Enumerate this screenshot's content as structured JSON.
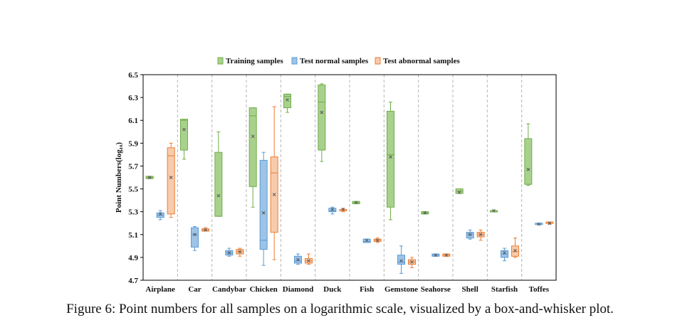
{
  "chart_data": {
    "type": "box",
    "ylabel": "Point Numbers(log₁₀)",
    "ylim": [
      4.7,
      6.5
    ],
    "yticks": [
      "4.7",
      "4.9",
      "5.1",
      "5.3",
      "5.5",
      "5.7",
      "5.9",
      "6.1",
      "6.3",
      "6.5"
    ],
    "categories": [
      "Airplane",
      "Car",
      "Candybar",
      "Chicken",
      "Diamond",
      "Duck",
      "Fish",
      "Gemstone",
      "Seahorse",
      "Shell",
      "Starfish",
      "Toffes"
    ],
    "legend_position": "top-center",
    "series": [
      {
        "name": "Training samples",
        "fill": "#a9d18e",
        "stroke": "#70ad47",
        "boxes": [
          {
            "min": 5.59,
            "q1": 5.59,
            "median": 5.6,
            "mean": 5.6,
            "q3": 5.61,
            "max": 5.61
          },
          {
            "min": 5.76,
            "q1": 5.84,
            "median": 6.1,
            "mean": 6.02,
            "q3": 6.11,
            "max": 6.11
          },
          {
            "min": 5.26,
            "q1": 5.26,
            "median": 5.26,
            "mean": 5.44,
            "q3": 5.82,
            "max": 6.0
          },
          {
            "min": 5.34,
            "q1": 5.52,
            "median": 6.14,
            "mean": 5.96,
            "q3": 6.21,
            "max": 6.21
          },
          {
            "min": 6.17,
            "q1": 6.21,
            "median": 6.31,
            "mean": 6.28,
            "q3": 6.33,
            "max": 6.33
          },
          {
            "min": 5.74,
            "q1": 5.84,
            "median": 6.26,
            "mean": 6.17,
            "q3": 6.41,
            "max": 6.42
          },
          {
            "min": 5.37,
            "q1": 5.37,
            "median": 5.38,
            "mean": 5.38,
            "q3": 5.39,
            "max": 5.39
          },
          {
            "min": 5.23,
            "q1": 5.34,
            "median": 5.8,
            "mean": 5.78,
            "q3": 6.18,
            "max": 6.26
          },
          {
            "min": 5.28,
            "q1": 5.28,
            "median": 5.29,
            "mean": 5.29,
            "q3": 5.3,
            "max": 5.3
          },
          {
            "min": 5.46,
            "q1": 5.46,
            "median": 5.48,
            "mean": 5.47,
            "q3": 5.5,
            "max": 5.5
          },
          {
            "min": 5.3,
            "q1": 5.3,
            "median": 5.31,
            "mean": 5.31,
            "q3": 5.31,
            "max": 5.31
          },
          {
            "min": 5.53,
            "q1": 5.54,
            "median": 5.54,
            "mean": 5.67,
            "q3": 5.94,
            "max": 6.07
          }
        ]
      },
      {
        "name": "Test normal samples",
        "fill": "#9dc3e6",
        "stroke": "#5b9bd5",
        "boxes": [
          {
            "min": 5.23,
            "q1": 5.25,
            "median": 5.27,
            "mean": 5.28,
            "q3": 5.29,
            "max": 5.31
          },
          {
            "min": 4.96,
            "q1": 4.99,
            "median": 5.1,
            "mean": 5.1,
            "q3": 5.16,
            "max": 5.17
          },
          {
            "min": 4.91,
            "q1": 4.92,
            "median": 4.94,
            "mean": 4.94,
            "q3": 4.96,
            "max": 4.98
          },
          {
            "min": 4.83,
            "q1": 4.97,
            "median": 5.05,
            "mean": 5.29,
            "q3": 5.75,
            "max": 5.82
          },
          {
            "min": 4.84,
            "q1": 4.85,
            "median": 4.87,
            "mean": 4.88,
            "q3": 4.91,
            "max": 4.93
          },
          {
            "min": 5.28,
            "q1": 5.3,
            "median": 5.31,
            "mean": 5.32,
            "q3": 5.33,
            "max": 5.34
          },
          {
            "min": 5.03,
            "q1": 5.03,
            "median": 5.04,
            "mean": 5.05,
            "q3": 5.06,
            "max": 5.06
          },
          {
            "min": 4.76,
            "q1": 4.84,
            "median": 4.86,
            "mean": 4.87,
            "q3": 4.92,
            "max": 5.0
          },
          {
            "min": 4.91,
            "q1": 4.91,
            "median": 4.92,
            "mean": 4.92,
            "q3": 4.93,
            "max": 4.93
          },
          {
            "min": 5.06,
            "q1": 5.07,
            "median": 5.1,
            "mean": 5.1,
            "q3": 5.12,
            "max": 5.14
          },
          {
            "min": 4.87,
            "q1": 4.9,
            "median": 4.93,
            "mean": 4.94,
            "q3": 4.96,
            "max": 4.98
          },
          {
            "min": 5.19,
            "q1": 5.19,
            "median": 5.19,
            "mean": 5.19,
            "q3": 5.2,
            "max": 5.2
          }
        ]
      },
      {
        "name": "Test abnormal samples",
        "fill": "#f8cbad",
        "stroke": "#ed7d31",
        "boxes": [
          {
            "min": 5.25,
            "q1": 5.28,
            "median": 5.79,
            "mean": 5.6,
            "q3": 5.86,
            "max": 5.9
          },
          {
            "min": 5.13,
            "q1": 5.13,
            "median": 5.14,
            "mean": 5.14,
            "q3": 5.15,
            "max": 5.16
          },
          {
            "min": 4.91,
            "q1": 4.93,
            "median": 4.95,
            "mean": 4.95,
            "q3": 4.97,
            "max": 4.98
          },
          {
            "min": 4.88,
            "q1": 5.12,
            "median": 5.64,
            "mean": 5.45,
            "q3": 5.78,
            "max": 6.22
          },
          {
            "min": 4.84,
            "q1": 4.85,
            "median": 4.87,
            "mean": 4.87,
            "q3": 4.89,
            "max": 4.93
          },
          {
            "min": 5.3,
            "q1": 5.31,
            "median": 5.32,
            "mean": 5.32,
            "q3": 5.32,
            "max": 5.33
          },
          {
            "min": 5.03,
            "q1": 5.04,
            "median": 5.05,
            "mean": 5.05,
            "q3": 5.06,
            "max": 5.07
          },
          {
            "min": 4.81,
            "q1": 4.84,
            "median": 4.86,
            "mean": 4.86,
            "q3": 4.88,
            "max": 4.9
          },
          {
            "min": 4.91,
            "q1": 4.91,
            "median": 4.92,
            "mean": 4.92,
            "q3": 4.93,
            "max": 4.93
          },
          {
            "min": 5.05,
            "q1": 5.08,
            "median": 5.1,
            "mean": 5.1,
            "q3": 5.12,
            "max": 5.14
          },
          {
            "min": 4.9,
            "q1": 4.91,
            "median": 4.95,
            "mean": 4.96,
            "q3": 5.0,
            "max": 5.07
          },
          {
            "min": 5.19,
            "q1": 5.2,
            "median": 5.2,
            "mean": 5.2,
            "q3": 5.21,
            "max": 5.21
          }
        ]
      }
    ]
  },
  "caption": "Figure 6: Point numbers for all samples on a logarithmic scale, visualized by a box-and-whisker plot."
}
